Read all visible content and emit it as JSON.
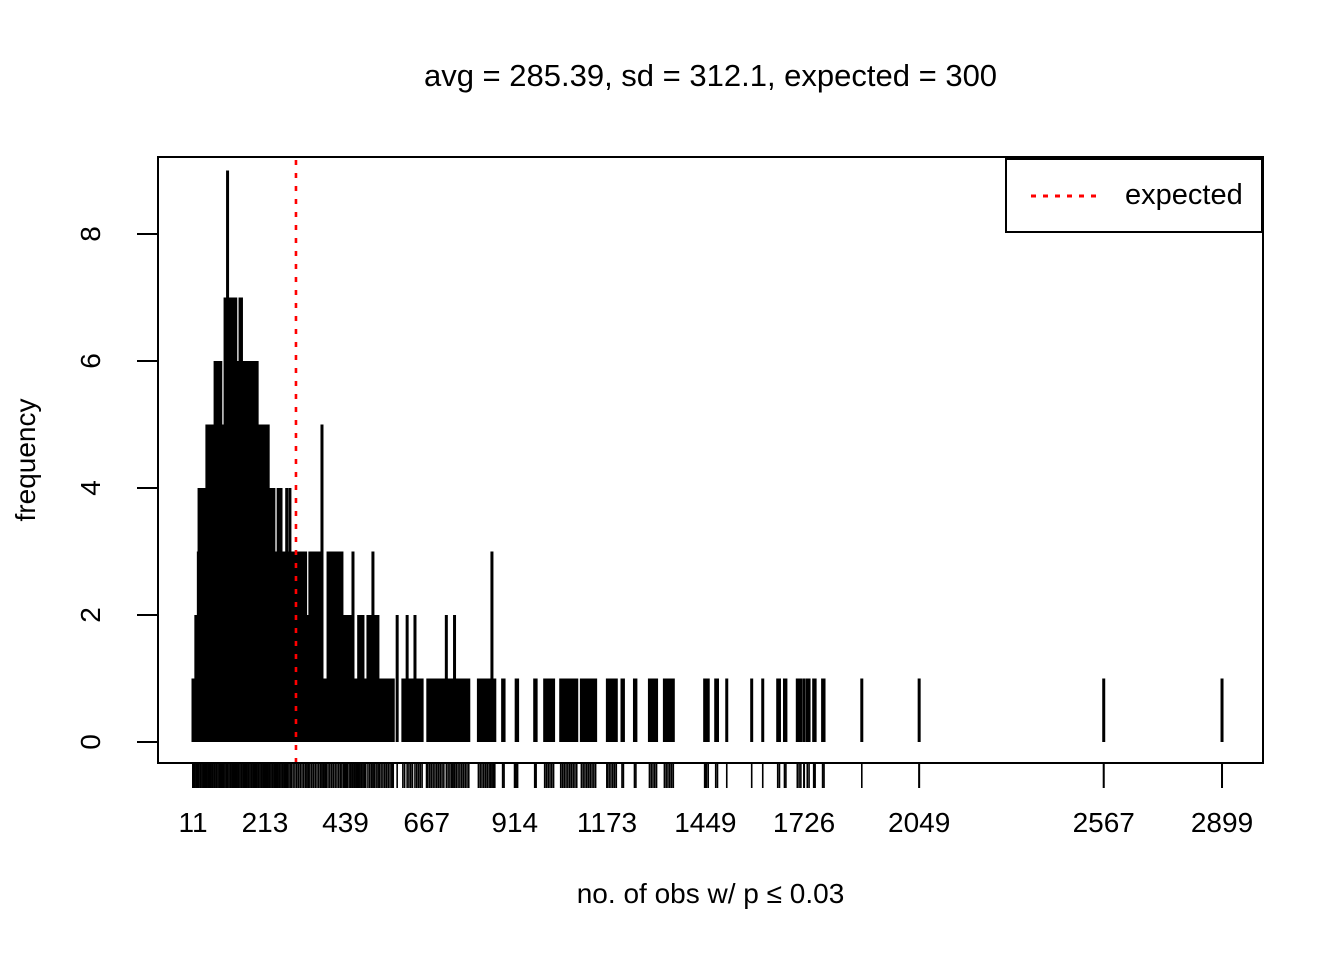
{
  "chart_data": {
    "type": "bar",
    "subtype": "spike-histogram-with-rug",
    "title": "avg = 285.39, sd = 312.1, expected = 300",
    "xlabel": "no. of obs w/ p ≤ 0.03",
    "ylabel": "frequency",
    "x_tick_labels": [
      11,
      213,
      439,
      667,
      914,
      1173,
      1449,
      1726,
      2049,
      2567,
      2899
    ],
    "y_tick_labels": [
      0,
      2,
      4,
      6,
      8
    ],
    "xlim": [
      -87,
      3014
    ],
    "ylim": [
      -0.35,
      9.21
    ],
    "grid": false,
    "stats": {
      "avg": 285.39,
      "sd": 312.1,
      "expected": 300
    },
    "expected_line": {
      "x": 300,
      "color": "#FF0000",
      "style": "dotted"
    },
    "legend": {
      "position": "topright",
      "entries": [
        {
          "label": "expected",
          "color": "#FF0000",
          "line_style": "dotted"
        }
      ]
    },
    "colors": {
      "spikes": "#000000",
      "axis": "#000000",
      "background": "#FFFFFF"
    },
    "spikes": [
      [
        11,
        1
      ],
      [
        15,
        1
      ],
      [
        19,
        2
      ],
      [
        23,
        2
      ],
      [
        26,
        3
      ],
      [
        28,
        4
      ],
      [
        32,
        4
      ],
      [
        36,
        4
      ],
      [
        40,
        4
      ],
      [
        44,
        4
      ],
      [
        47,
        4
      ],
      [
        50,
        5
      ],
      [
        54,
        5
      ],
      [
        58,
        5
      ],
      [
        62,
        5
      ],
      [
        66,
        5
      ],
      [
        70,
        5
      ],
      [
        73,
        6
      ],
      [
        77,
        6
      ],
      [
        81,
        6
      ],
      [
        85,
        6
      ],
      [
        89,
        6
      ],
      [
        93,
        5
      ],
      [
        97,
        5
      ],
      [
        101,
        7
      ],
      [
        105,
        7
      ],
      [
        108,
        9
      ],
      [
        112,
        7
      ],
      [
        116,
        7
      ],
      [
        120,
        7
      ],
      [
        124,
        7
      ],
      [
        128,
        7
      ],
      [
        131,
        7
      ],
      [
        135,
        6
      ],
      [
        139,
        6
      ],
      [
        143,
        7
      ],
      [
        147,
        7
      ],
      [
        151,
        6
      ],
      [
        155,
        6
      ],
      [
        159,
        6
      ],
      [
        163,
        6
      ],
      [
        167,
        6
      ],
      [
        171,
        6
      ],
      [
        175,
        6
      ],
      [
        179,
        6
      ],
      [
        183,
        6
      ],
      [
        187,
        6
      ],
      [
        191,
        6
      ],
      [
        195,
        5
      ],
      [
        199,
        5
      ],
      [
        203,
        5
      ],
      [
        207,
        5
      ],
      [
        211,
        5
      ],
      [
        215,
        5
      ],
      [
        219,
        5
      ],
      [
        222,
        5
      ],
      [
        226,
        4
      ],
      [
        230,
        4
      ],
      [
        234,
        4
      ],
      [
        238,
        4
      ],
      [
        242,
        3
      ],
      [
        246,
        3
      ],
      [
        250,
        4
      ],
      [
        254,
        3
      ],
      [
        258,
        4
      ],
      [
        262,
        3
      ],
      [
        266,
        3
      ],
      [
        270,
        3
      ],
      [
        274,
        4
      ],
      [
        278,
        3
      ],
      [
        283,
        4
      ],
      [
        287,
        3
      ],
      [
        292,
        3
      ],
      [
        297,
        3
      ],
      [
        302,
        3
      ],
      [
        307,
        3
      ],
      [
        312,
        3
      ],
      [
        317,
        3
      ],
      [
        322,
        3
      ],
      [
        327,
        3
      ],
      [
        331,
        2
      ],
      [
        335,
        2
      ],
      [
        339,
        3
      ],
      [
        344,
        3
      ],
      [
        349,
        3
      ],
      [
        354,
        3
      ],
      [
        359,
        3
      ],
      [
        364,
        3
      ],
      [
        369,
        3
      ],
      [
        373,
        5
      ],
      [
        377,
        1
      ],
      [
        381,
        1
      ],
      [
        385,
        1
      ],
      [
        390,
        3
      ],
      [
        395,
        3
      ],
      [
        400,
        3
      ],
      [
        405,
        3
      ],
      [
        410,
        3
      ],
      [
        415,
        3
      ],
      [
        420,
        3
      ],
      [
        425,
        3
      ],
      [
        429,
        3
      ],
      [
        434,
        2
      ],
      [
        439,
        2
      ],
      [
        444,
        2
      ],
      [
        449,
        2
      ],
      [
        453,
        2
      ],
      [
        457,
        2
      ],
      [
        460,
        3
      ],
      [
        464,
        1
      ],
      [
        468,
        1
      ],
      [
        472,
        1
      ],
      [
        476,
        2
      ],
      [
        480,
        2
      ],
      [
        484,
        2
      ],
      [
        488,
        2
      ],
      [
        492,
        1
      ],
      [
        496,
        1
      ],
      [
        502,
        2
      ],
      [
        507,
        2
      ],
      [
        512,
        2
      ],
      [
        516,
        3
      ],
      [
        520,
        2
      ],
      [
        525,
        2
      ],
      [
        530,
        2
      ],
      [
        534,
        1
      ],
      [
        539,
        1
      ],
      [
        544,
        1
      ],
      [
        549,
        1
      ],
      [
        554,
        1
      ],
      [
        559,
        1
      ],
      [
        564,
        1
      ],
      [
        569,
        1
      ],
      [
        573,
        1
      ],
      [
        584,
        2
      ],
      [
        600,
        1
      ],
      [
        605,
        1
      ],
      [
        612,
        2
      ],
      [
        617,
        1
      ],
      [
        622,
        1
      ],
      [
        627,
        1
      ],
      [
        634,
        2
      ],
      [
        639,
        1
      ],
      [
        644,
        1
      ],
      [
        649,
        1
      ],
      [
        654,
        1
      ],
      [
        670,
        1
      ],
      [
        675,
        1
      ],
      [
        680,
        1
      ],
      [
        685,
        1
      ],
      [
        690,
        1
      ],
      [
        695,
        1
      ],
      [
        700,
        1
      ],
      [
        705,
        1
      ],
      [
        710,
        1
      ],
      [
        715,
        1
      ],
      [
        722,
        2
      ],
      [
        727,
        1
      ],
      [
        732,
        1
      ],
      [
        737,
        1
      ],
      [
        741,
        1
      ],
      [
        745,
        2
      ],
      [
        750,
        1
      ],
      [
        755,
        1
      ],
      [
        760,
        1
      ],
      [
        765,
        1
      ],
      [
        770,
        1
      ],
      [
        775,
        1
      ],
      [
        780,
        1
      ],
      [
        785,
        1
      ],
      [
        812,
        1
      ],
      [
        817,
        1
      ],
      [
        822,
        1
      ],
      [
        827,
        1
      ],
      [
        832,
        1
      ],
      [
        837,
        1
      ],
      [
        842,
        1
      ],
      [
        846,
        1
      ],
      [
        850,
        3
      ],
      [
        854,
        1
      ],
      [
        858,
        1
      ],
      [
        880,
        1
      ],
      [
        884,
        1
      ],
      [
        918,
        1
      ],
      [
        922,
        1
      ],
      [
        970,
        1
      ],
      [
        974,
        1
      ],
      [
        998,
        1
      ],
      [
        1003,
        1
      ],
      [
        1008,
        1
      ],
      [
        1013,
        1
      ],
      [
        1018,
        1
      ],
      [
        1023,
        1
      ],
      [
        1043,
        1
      ],
      [
        1048,
        1
      ],
      [
        1053,
        1
      ],
      [
        1058,
        1
      ],
      [
        1063,
        1
      ],
      [
        1068,
        1
      ],
      [
        1073,
        1
      ],
      [
        1078,
        1
      ],
      [
        1083,
        1
      ],
      [
        1088,
        1
      ],
      [
        1101,
        1
      ],
      [
        1106,
        1
      ],
      [
        1111,
        1
      ],
      [
        1116,
        1
      ],
      [
        1121,
        1
      ],
      [
        1126,
        1
      ],
      [
        1131,
        1
      ],
      [
        1136,
        1
      ],
      [
        1141,
        1
      ],
      [
        1174,
        1
      ],
      [
        1179,
        1
      ],
      [
        1184,
        1
      ],
      [
        1189,
        1
      ],
      [
        1194,
        1
      ],
      [
        1199,
        1
      ],
      [
        1215,
        1
      ],
      [
        1219,
        1
      ],
      [
        1250,
        1
      ],
      [
        1254,
        1
      ],
      [
        1292,
        1
      ],
      [
        1297,
        1
      ],
      [
        1302,
        1
      ],
      [
        1307,
        1
      ],
      [
        1312,
        1
      ],
      [
        1334,
        1
      ],
      [
        1339,
        1
      ],
      [
        1344,
        1
      ],
      [
        1349,
        1
      ],
      [
        1354,
        1
      ],
      [
        1359,
        1
      ],
      [
        1447,
        1
      ],
      [
        1452,
        1
      ],
      [
        1457,
        1
      ],
      [
        1478,
        1
      ],
      [
        1483,
        1
      ],
      [
        1509,
        1
      ],
      [
        1579,
        1
      ],
      [
        1610,
        1
      ],
      [
        1652,
        1
      ],
      [
        1657,
        1
      ],
      [
        1671,
        1
      ],
      [
        1675,
        1
      ],
      [
        1707,
        1
      ],
      [
        1712,
        1
      ],
      [
        1717,
        1
      ],
      [
        1726,
        1
      ],
      [
        1735,
        1
      ],
      [
        1740,
        1
      ],
      [
        1753,
        1
      ],
      [
        1757,
        1
      ],
      [
        1778,
        1
      ],
      [
        1782,
        1
      ],
      [
        1888,
        1
      ],
      [
        2049,
        1
      ],
      [
        2567,
        1
      ],
      [
        2899,
        1
      ]
    ],
    "rug": "tick drawn below axis at every spike x value"
  }
}
